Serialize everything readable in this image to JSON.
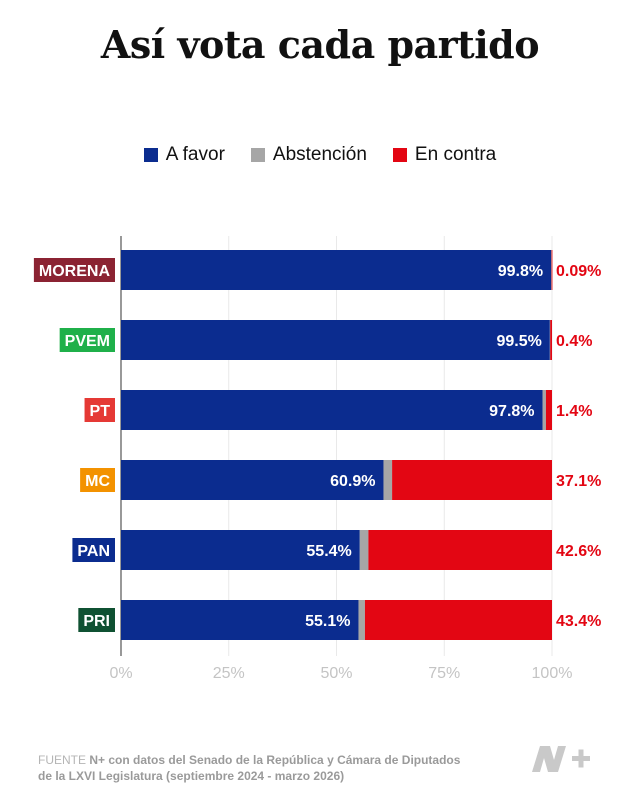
{
  "title": "Así vota cada partido",
  "legend": [
    {
      "label": "A favor",
      "color": "#0b2c8f"
    },
    {
      "label": "Abstención",
      "color": "#a6a6a6"
    },
    {
      "label": "En contra",
      "color": "#e30613"
    }
  ],
  "chart_data": {
    "type": "bar",
    "orientation": "horizontal",
    "stacked": true,
    "categories": [
      "MORENA",
      "PVEM",
      "PT",
      "MC",
      "PAN",
      "PRI"
    ],
    "category_colors": [
      "#8b2332",
      "#1fb04a",
      "#e53935",
      "#f39200",
      "#0b2c8f",
      "#0f5132"
    ],
    "series": [
      {
        "name": "A favor",
        "color": "#0b2c8f",
        "values": [
          99.8,
          99.5,
          97.8,
          60.9,
          55.4,
          55.1
        ],
        "labels": [
          "99.8%",
          "99.5%",
          "97.8%",
          "60.9%",
          "55.4%",
          "55.1%"
        ]
      },
      {
        "name": "Abstención",
        "color": "#a6a6a6",
        "values": [
          0.11,
          0.1,
          0.8,
          2.0,
          2.0,
          1.5
        ]
      },
      {
        "name": "En contra",
        "color": "#e30613",
        "values": [
          0.09,
          0.4,
          1.4,
          37.1,
          42.6,
          43.4
        ],
        "labels": [
          "0.09%",
          "0.4%",
          "1.4%",
          "37.1%",
          "42.6%",
          "43.4%"
        ]
      }
    ],
    "xlim": [
      0,
      100
    ],
    "xticks": [
      0,
      25,
      50,
      75,
      100
    ],
    "xtick_labels": [
      "0%",
      "25%",
      "50%",
      "75%",
      "100%"
    ],
    "grid": true,
    "legend_position": "top"
  },
  "footer": {
    "source_label": "FUENTE",
    "source_text": "N+ con datos del Senado de la República y Cámara de Diputados",
    "source_text_2": "de la LXVI Legislatura (septiembre 2024 - marzo 2026)"
  },
  "logo": {
    "text": "N+"
  }
}
